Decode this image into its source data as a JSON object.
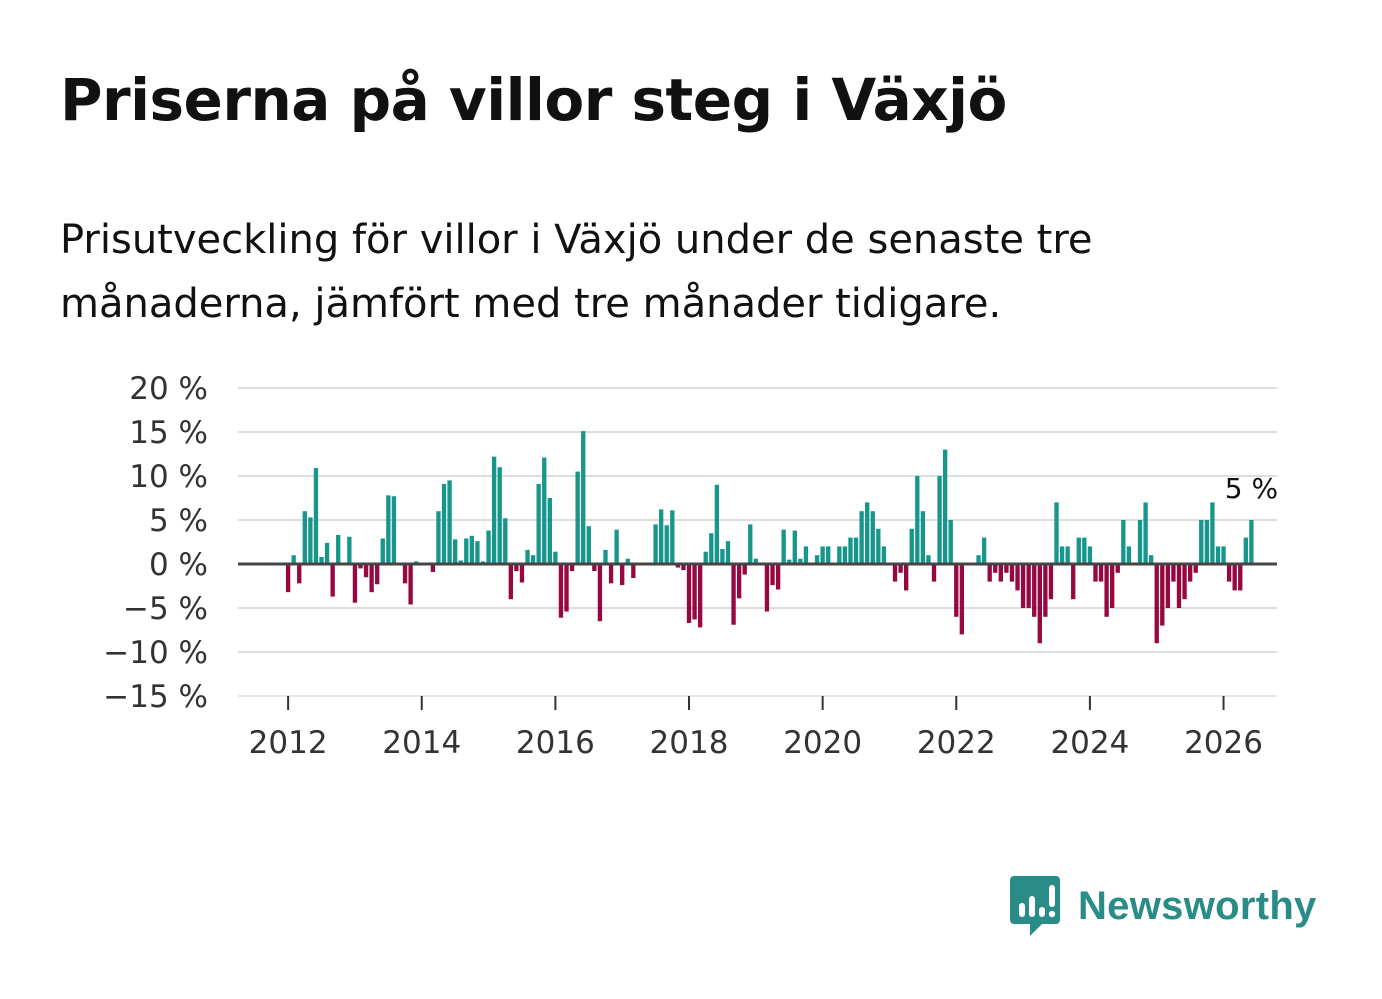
{
  "title": "Priserna på villor steg i Växjö",
  "subtitle": "Prisutveckling för villor i Växjö under de senaste tre månaderna, jämfört med tre månader tidigare.",
  "brand": {
    "name": "Newsworthy"
  },
  "colors": {
    "positive": "#17978c",
    "negative": "#96083f",
    "grid": "#dddddd",
    "zero_line": "#444444",
    "brand": "#2a8c86"
  },
  "chart_data": {
    "type": "bar",
    "title": "Priserna på villor steg i Växjö",
    "xlabel": "",
    "ylabel": "",
    "ylim": [
      -15,
      20
    ],
    "xlim": [
      2011.25,
      2026.8
    ],
    "y_ticks": [
      20,
      15,
      10,
      5,
      0,
      -5,
      -10,
      -15
    ],
    "y_tick_labels": [
      "20 %",
      "15 %",
      "10 %",
      "5 %",
      "0 %",
      "−5 %",
      "−10 %",
      "−15 %"
    ],
    "x_ticks": [
      2012,
      2014,
      2016,
      2018,
      2020,
      2022,
      2024,
      2026
    ],
    "x_tick_labels": [
      "2012",
      "2014",
      "2016",
      "2018",
      "2020",
      "2022",
      "2024",
      "2026"
    ],
    "end_label": "5 %",
    "series": [
      {
        "name": "Prisutveckling",
        "start": 2012.0,
        "step": 0.0833333,
        "values": [
          -3.2,
          1,
          -2.2,
          6,
          5.3,
          10.9,
          0.8,
          2.4,
          -3.7,
          3.3,
          0,
          3.1,
          -4.4,
          -0.5,
          -1.5,
          -3.2,
          -2.3,
          2.9,
          7.8,
          7.7,
          0,
          -2.2,
          -4.6,
          0.3,
          0,
          0,
          -0.9,
          6,
          9.1,
          9.5,
          2.8,
          0.4,
          2.9,
          3.2,
          2.6,
          0.3,
          3.8,
          12.2,
          11,
          5.2,
          -4,
          -0.8,
          -2.1,
          1.6,
          1,
          9.1,
          12.1,
          7.5,
          1.4,
          -6.1,
          -5.4,
          -0.8,
          10.5,
          15.1,
          4.3,
          -0.8,
          -6.5,
          1.6,
          -2.2,
          3.9,
          -2.4,
          0.6,
          -1.6,
          0,
          0,
          0,
          4.5,
          6.2,
          4.4,
          6.1,
          -0.4,
          -0.7,
          -6.7,
          -6.3,
          -7.2,
          1.4,
          3.5,
          9,
          1.7,
          2.6,
          -6.9,
          -3.9,
          -1.2,
          4.5,
          0.6,
          0,
          -5.4,
          -2.4,
          -2.9,
          3.9,
          0.5,
          3.8,
          0.6,
          2,
          0,
          1,
          2,
          2,
          0,
          2,
          2,
          3,
          3,
          6,
          7,
          6,
          4,
          2,
          0,
          -2,
          -1,
          -3,
          4,
          10,
          6,
          1,
          -2,
          10,
          13,
          5,
          -6,
          -8,
          0,
          0,
          1,
          3,
          -2,
          -1,
          -2,
          -1,
          -2,
          -3,
          -5,
          -5,
          -6,
          -9,
          -6,
          -4,
          7,
          2,
          2,
          -4,
          3,
          3,
          2,
          -2,
          -2,
          -6,
          -5,
          -1,
          5,
          2,
          0,
          5,
          7,
          1,
          -9,
          -7,
          -5,
          -2,
          -5,
          -4,
          -2,
          -1,
          5,
          5,
          7,
          2,
          2,
          -2,
          -3,
          -3,
          3,
          5
        ]
      }
    ]
  }
}
